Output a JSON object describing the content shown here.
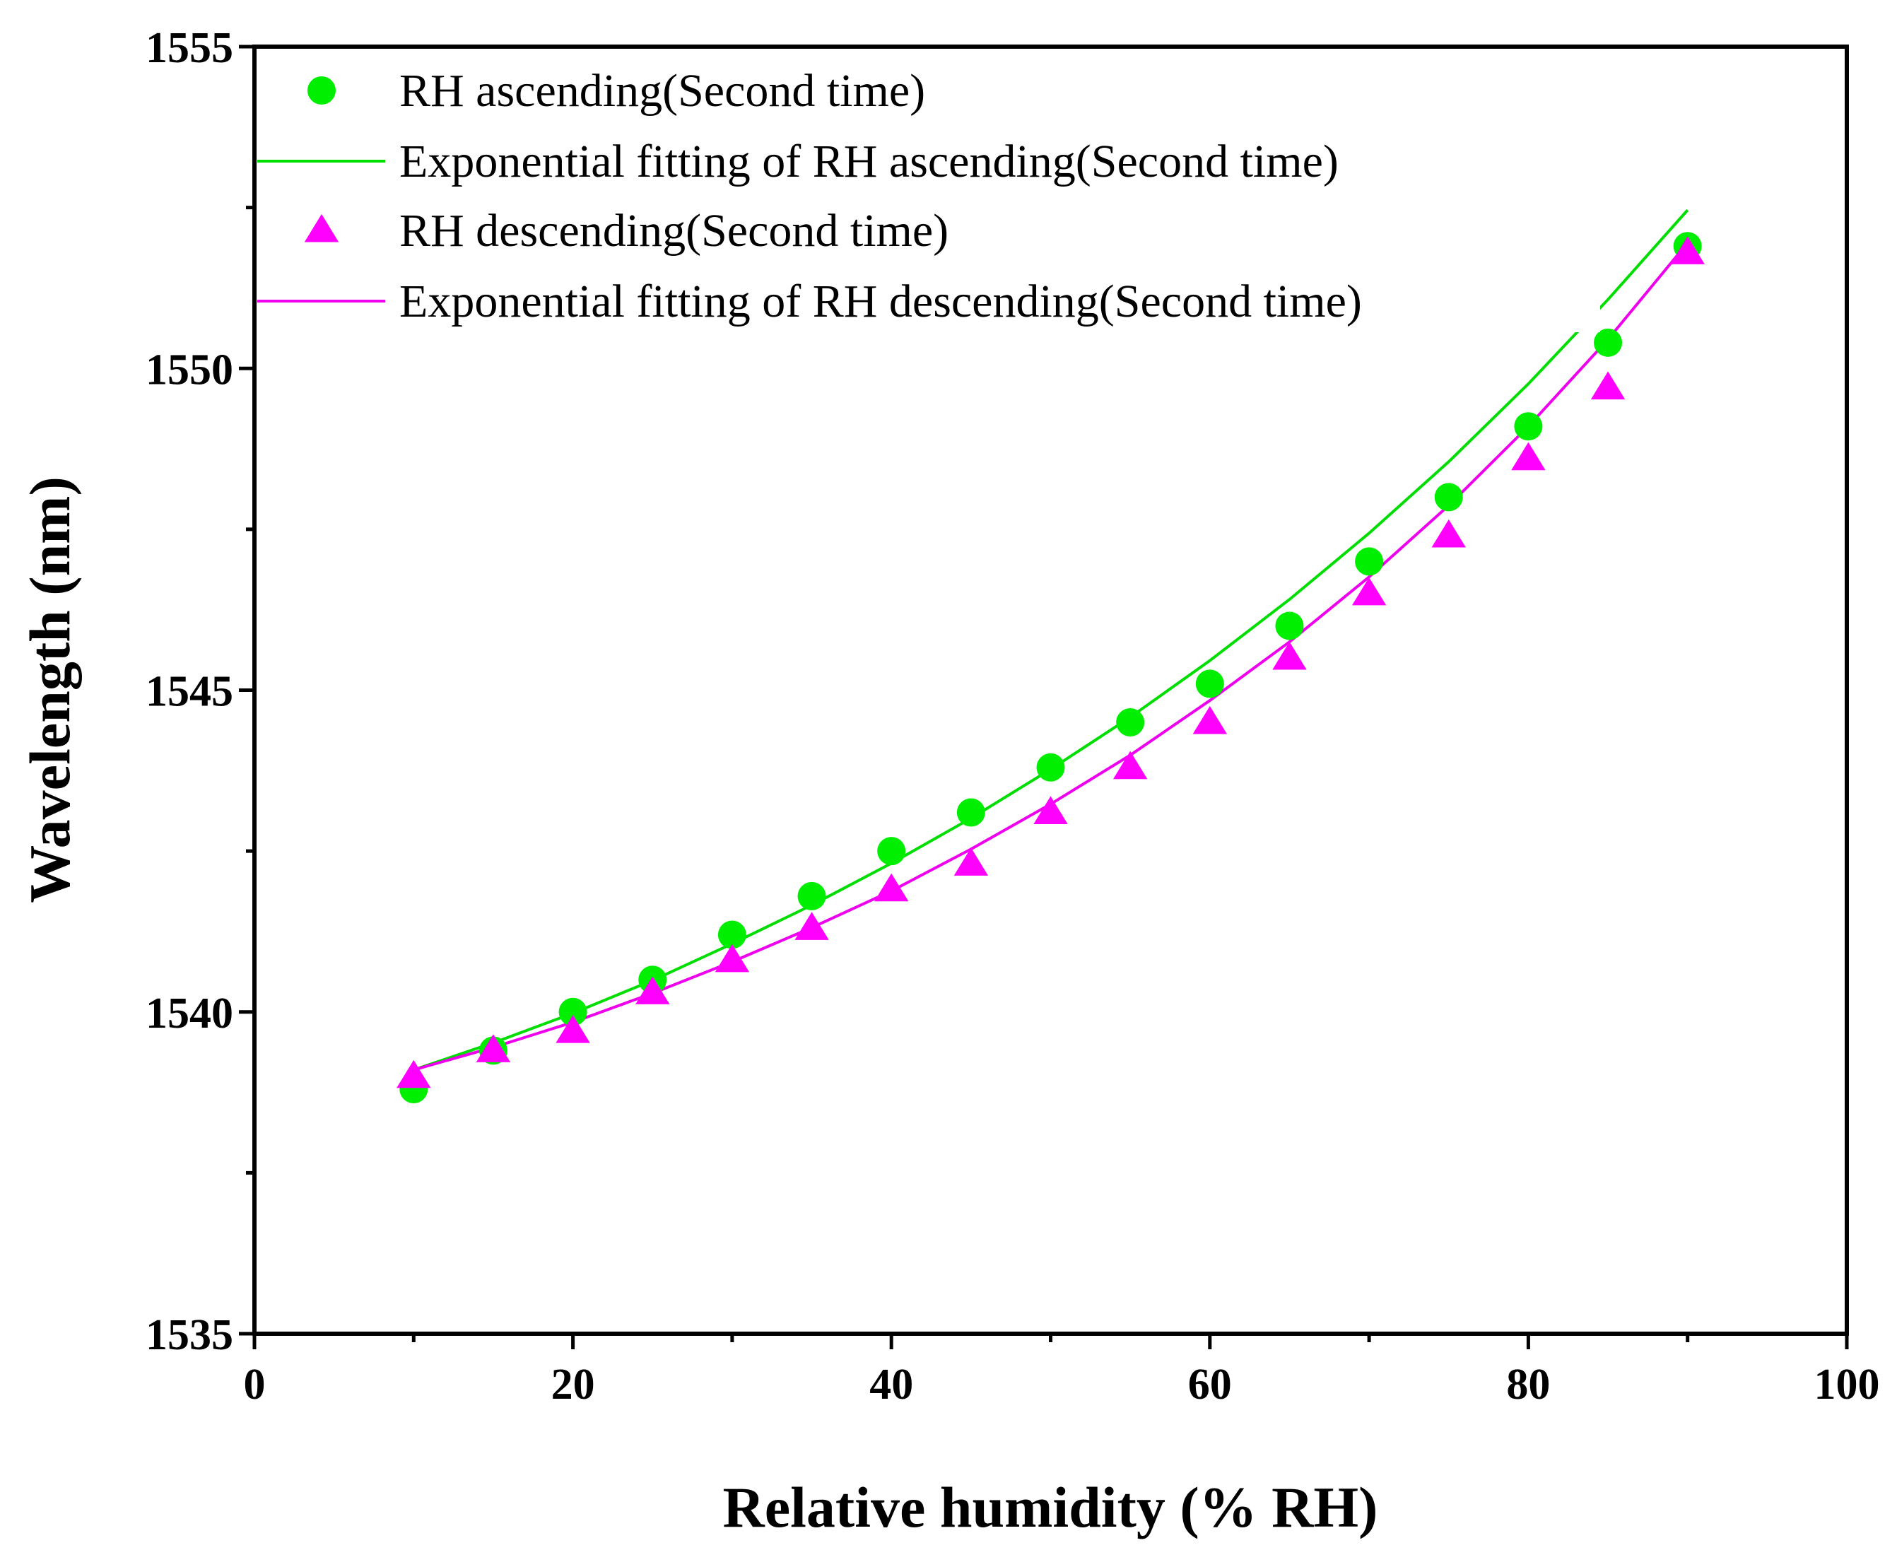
{
  "chart_data": {
    "type": "scatter",
    "xlabel": "Relative humidity (% RH)",
    "ylabel": "Wavelength (nm)",
    "xlim": [
      0,
      100
    ],
    "ylim": [
      1535,
      1555
    ],
    "x_ticks": [
      0,
      20,
      40,
      60,
      80,
      100
    ],
    "y_ticks": [
      1535,
      1540,
      1545,
      1550,
      1555
    ],
    "x_tick_labels": [
      "0",
      "20",
      "40",
      "60",
      "80",
      "100"
    ],
    "y_tick_labels": [
      "1535",
      "1540",
      "1545",
      "1550",
      "1555"
    ],
    "legend_position": "top-left",
    "grid": false,
    "x": [
      10,
      15,
      20,
      25,
      30,
      35,
      40,
      45,
      50,
      55,
      60,
      65,
      70,
      75,
      80,
      85,
      90
    ],
    "series": [
      {
        "name": "RH ascending(Second time)",
        "kind": "scatter",
        "marker": "circle",
        "color": "#00ee00",
        "values": [
          1538.8,
          1539.4,
          1540.0,
          1540.5,
          1541.2,
          1541.8,
          1542.5,
          1543.1,
          1543.8,
          1544.5,
          1545.1,
          1546.0,
          1547.0,
          1548.0,
          1549.1,
          1550.4,
          1551.9
        ]
      },
      {
        "name": "Exponential fitting of RH ascending(Second time)",
        "kind": "line",
        "color": "#00dd00",
        "values": [
          1539.1,
          1539.52,
          1539.98,
          1540.49,
          1541.06,
          1541.66,
          1542.31,
          1543.01,
          1543.77,
          1544.58,
          1545.46,
          1546.41,
          1547.44,
          1548.55,
          1549.76,
          1551.07,
          1552.46
        ]
      },
      {
        "name": "RH descending(Second time)",
        "kind": "scatter",
        "marker": "triangle",
        "color": "#ff00ff",
        "values": [
          1539.0,
          1539.4,
          1539.7,
          1540.3,
          1540.8,
          1541.3,
          1541.9,
          1542.3,
          1543.1,
          1543.8,
          1544.5,
          1545.5,
          1546.5,
          1547.4,
          1548.6,
          1549.7,
          1551.8
        ]
      },
      {
        "name": "Exponential fitting of RH descending(Second time)",
        "kind": "line",
        "color": "#ee00ee",
        "values": [
          1539.1,
          1539.45,
          1539.84,
          1540.29,
          1540.78,
          1541.31,
          1541.88,
          1542.53,
          1543.23,
          1543.99,
          1544.84,
          1545.75,
          1546.76,
          1547.87,
          1549.1,
          1550.45,
          1551.95
        ]
      }
    ]
  }
}
